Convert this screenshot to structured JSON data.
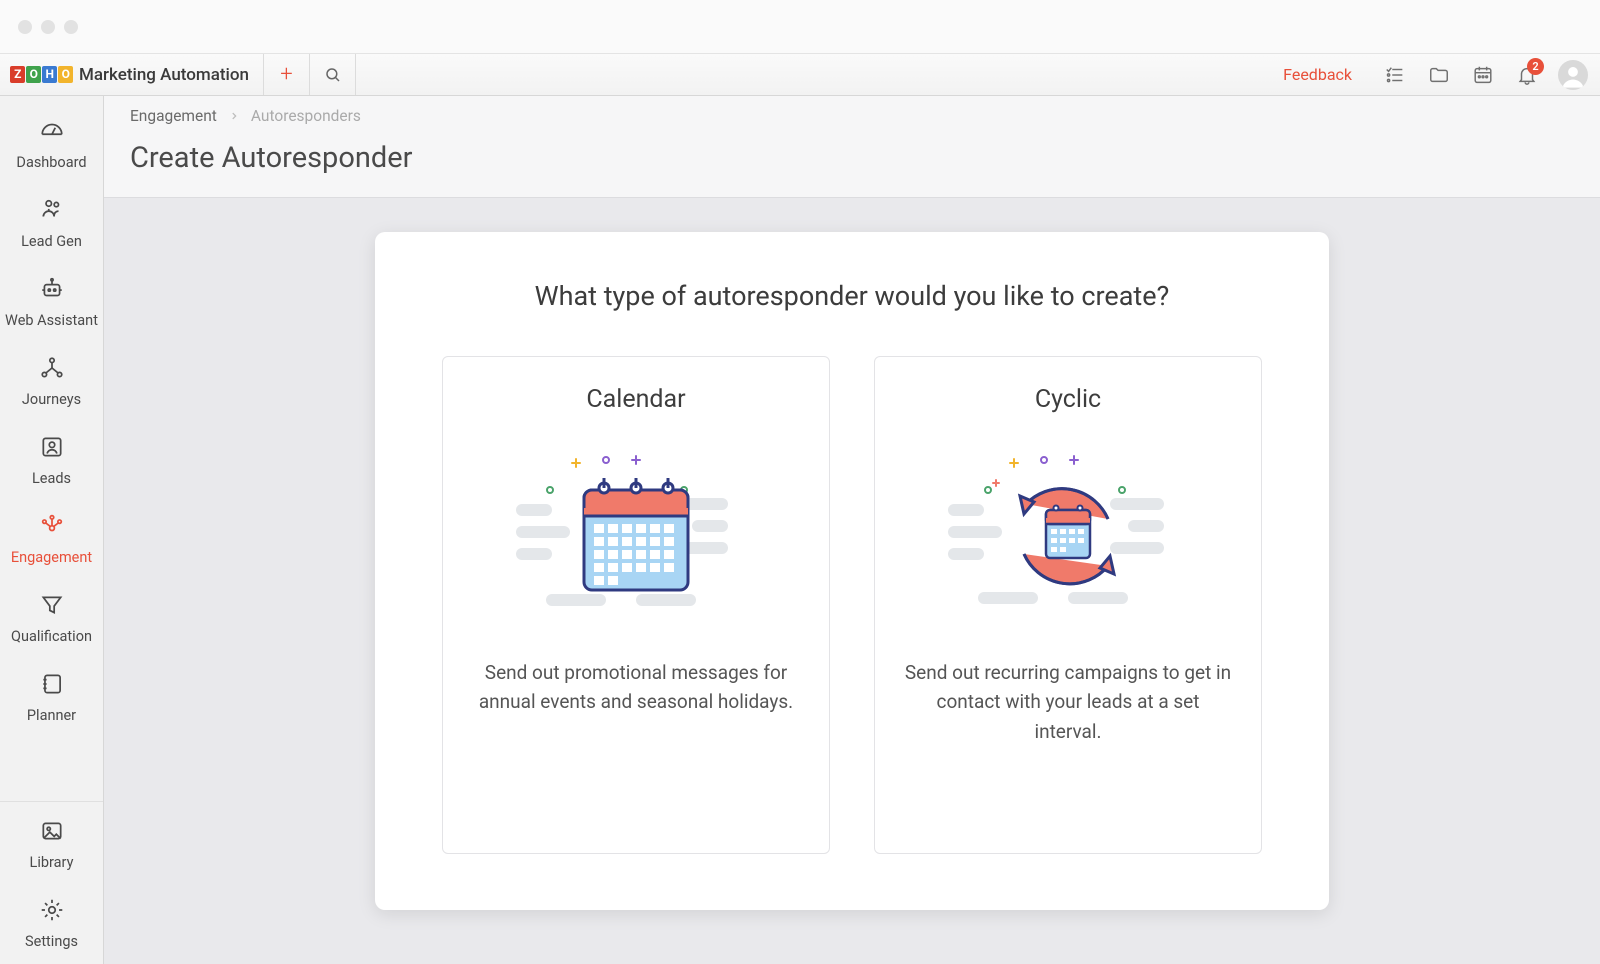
{
  "brand": {
    "logo_letters": [
      "Z",
      "O",
      "H",
      "O"
    ],
    "logo_colors": [
      "#d93d2a",
      "#3fa24c",
      "#3a7ad1",
      "#f2b42c"
    ],
    "name": "Marketing Automation"
  },
  "topbar": {
    "feedback": "Feedback",
    "notification_count": "2"
  },
  "sidebar": {
    "items": [
      {
        "key": "dashboard",
        "label": "Dashboard"
      },
      {
        "key": "lead-gen",
        "label": "Lead Gen"
      },
      {
        "key": "web-assistant",
        "label": "Web Assistant"
      },
      {
        "key": "journeys",
        "label": "Journeys"
      },
      {
        "key": "leads",
        "label": "Leads"
      },
      {
        "key": "engagement",
        "label": "Engagement"
      },
      {
        "key": "qualification",
        "label": "Qualification"
      },
      {
        "key": "planner",
        "label": "Planner"
      }
    ],
    "bottom": [
      {
        "key": "library",
        "label": "Library"
      },
      {
        "key": "settings",
        "label": "Settings"
      }
    ],
    "active": "engagement"
  },
  "breadcrumb": {
    "parent": "Engagement",
    "current": "Autoresponders"
  },
  "page": {
    "title": "Create Autoresponder",
    "panel_title": "What type of autoresponder would you like to create?"
  },
  "options": {
    "calendar": {
      "title": "Calendar",
      "description": "Send out promotional messages for annual events and seasonal holidays."
    },
    "cyclic": {
      "title": "Cyclic",
      "description": "Send out recurring campaigns to get in contact with your leads at a set interval."
    }
  },
  "colors": {
    "accent": "#e8503a",
    "cal_fill": "#a8d5f4",
    "cal_top": "#f07a6a",
    "cal_stroke": "#2f3a80",
    "pill": "#e4e7ea",
    "spark_yellow": "#f2b42c",
    "spark_purple": "#8a5fcf",
    "spark_green": "#4aa36a"
  }
}
